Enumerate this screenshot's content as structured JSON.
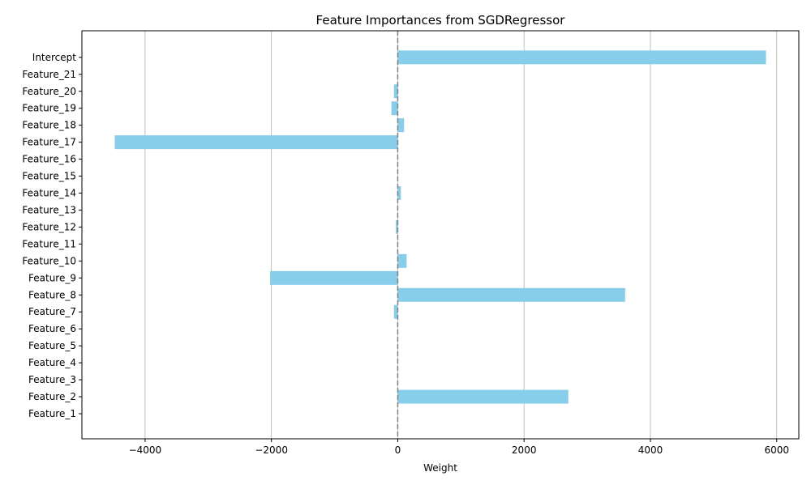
{
  "chart_data": {
    "type": "bar",
    "orientation": "horizontal",
    "title": "Feature Importances from SGDRegressor",
    "xlabel": "Weight",
    "ylabel": "",
    "xlim": [
      -5000,
      6350
    ],
    "xticks": [
      -4000,
      -2000,
      0,
      2000,
      4000,
      6000
    ],
    "xtick_labels": [
      "−4000",
      "−2000",
      "0",
      "2000",
      "4000",
      "6000"
    ],
    "grid": "vertical",
    "zero_line": "dashed",
    "bar_color": "#87ceeb",
    "categories": [
      "Feature_1",
      "Feature_2",
      "Feature_3",
      "Feature_4",
      "Feature_5",
      "Feature_6",
      "Feature_7",
      "Feature_8",
      "Feature_9",
      "Feature_10",
      "Feature_11",
      "Feature_12",
      "Feature_13",
      "Feature_14",
      "Feature_15",
      "Feature_16",
      "Feature_17",
      "Feature_18",
      "Feature_19",
      "Feature_20",
      "Feature_21",
      "Intercept"
    ],
    "values": [
      0,
      2700,
      0,
      0,
      0,
      0,
      -60,
      3600,
      -2020,
      140,
      0,
      -30,
      0,
      50,
      0,
      0,
      -4480,
      100,
      -100,
      -60,
      0,
      5830
    ]
  }
}
